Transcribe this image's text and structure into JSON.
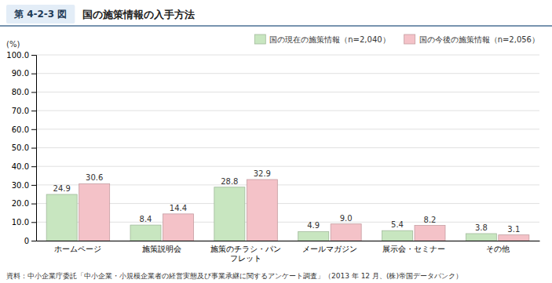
{
  "chart_data": {
    "type": "bar",
    "title": "国の施策情報の入手方法",
    "annotations": [
      "第 4-2-3 図",
      "資料：中小企業庁委託「中小企業・小規模企業者の経営実態及び事業承継に関するアンケート調査」（2013 年 12 月、(株)帝国データバンク）"
    ],
    "y_label": "(%)",
    "categories": [
      "ホームページ",
      "施策説明会",
      "施策のチラシ・パンフレット",
      "メールマガジン",
      "展示会・セミナー",
      "その他"
    ],
    "series": [
      {
        "name": "国の現在の施策情報（n=2,040）",
        "color": "#c8e6c0",
        "values": [
          24.9,
          8.4,
          28.8,
          4.9,
          5.4,
          3.8
        ]
      },
      {
        "name": "国の今後の施策情報（n=2,056）",
        "color": "#f4c2c8",
        "values": [
          30.6,
          14.4,
          32.9,
          9.0,
          8.2,
          3.1
        ],
        "value_labels": [
          "30.6",
          "14.4",
          "32.9",
          "9.0",
          "8.2",
          "3.1"
        ]
      }
    ],
    "ylim": [
      0,
      100
    ],
    "yticks": [
      0,
      {
        "value": 10,
        "label": "10.0"
      },
      {
        "value": 20,
        "label": "20.0"
      },
      {
        "value": 30,
        "label": "30.0"
      },
      {
        "value": 40,
        "label": "40.0"
      },
      {
        "value": 50,
        "label": "50.0"
      },
      {
        "value": 60,
        "label": "60.0"
      },
      {
        "value": 70,
        "label": "70.0"
      },
      {
        "value": 80,
        "label": "80.0"
      },
      {
        "value": 90,
        "label": "90.0"
      },
      {
        "value": 100,
        "label": "100.0"
      }
    ],
    "grid": true,
    "legend": "top-right",
    "data_labels": true
  }
}
